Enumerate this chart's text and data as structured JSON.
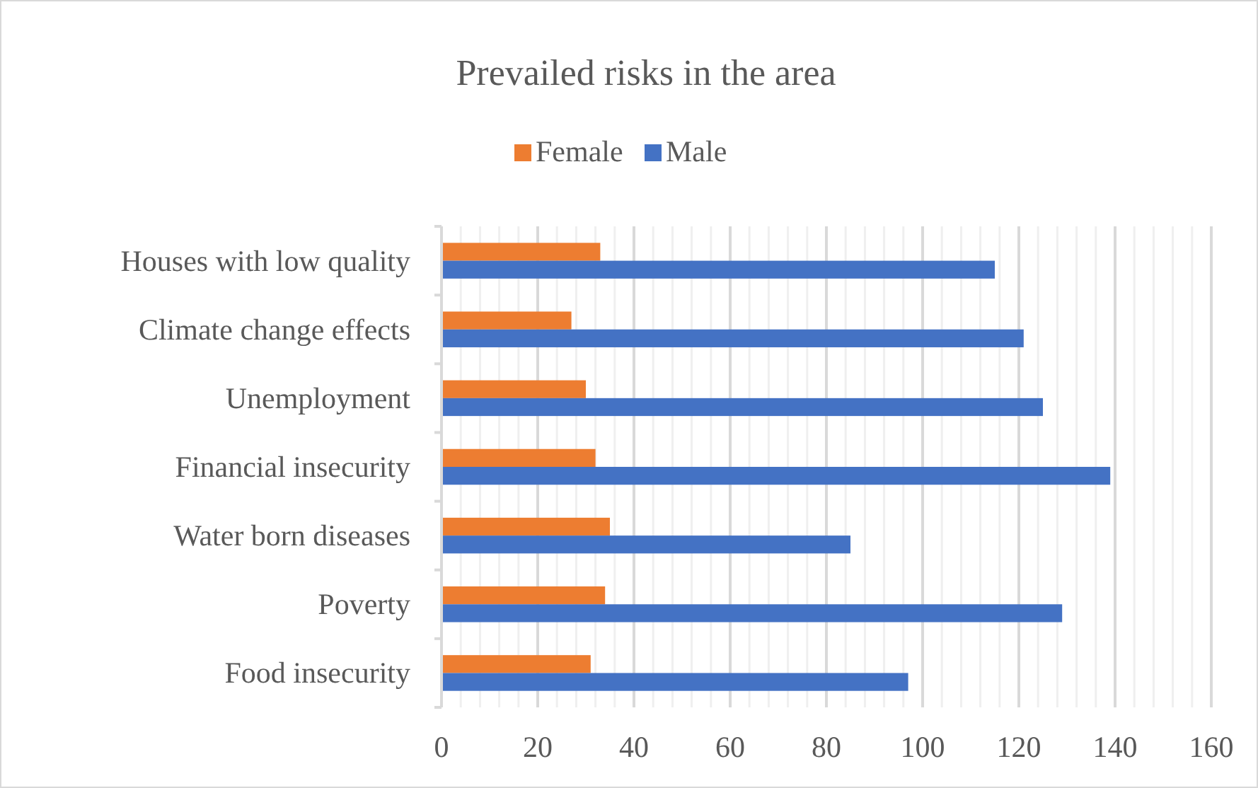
{
  "chart_data": {
    "type": "bar",
    "orientation": "horizontal",
    "title": "Prevailed risks in the area",
    "categories": [
      "Houses with low quality",
      "Climate change effects",
      "Unemployment",
      "Financial insecurity",
      "Water born diseases",
      "Poverty",
      "Food insecurity"
    ],
    "series": [
      {
        "name": "Female",
        "color": "#ed7d31",
        "values": [
          33,
          27,
          30,
          32,
          35,
          34,
          31
        ]
      },
      {
        "name": "Male",
        "color": "#4472c4",
        "values": [
          115,
          121,
          125,
          139,
          85,
          129,
          97
        ]
      }
    ],
    "xlim": [
      0,
      160
    ],
    "xticks": [
      0,
      {
        "value": 4,
        "label": null
      },
      {
        "value": 8,
        "label": null
      },
      {
        "value": 12,
        "label": null
      },
      {
        "value": 16,
        "label": null
      },
      20,
      {
        "value": 24,
        "label": null
      },
      {
        "value": 28,
        "label": null
      },
      {
        "value": 32,
        "label": null
      },
      {
        "value": 36,
        "label": null
      },
      40,
      {
        "value": 44,
        "label": null
      },
      {
        "value": 48,
        "label": null
      },
      {
        "value": 52,
        "label": null
      },
      {
        "value": 56,
        "label": null
      },
      60,
      {
        "value": 64,
        "label": null
      },
      {
        "value": 68,
        "label": null
      },
      {
        "value": 72,
        "label": null
      },
      {
        "value": 76,
        "label": null
      },
      80,
      {
        "value": 84,
        "label": null
      },
      {
        "value": 88,
        "label": null
      },
      {
        "value": 92,
        "label": null
      },
      {
        "value": 96,
        "label": null
      },
      100,
      {
        "value": 104,
        "label": null
      },
      {
        "value": 108,
        "label": null
      },
      {
        "value": 112,
        "label": null
      },
      {
        "value": 116,
        "label": null
      },
      120,
      {
        "value": 124,
        "label": null
      },
      {
        "value": 128,
        "label": null
      },
      {
        "value": 132,
        "label": null
      },
      {
        "value": 136,
        "label": null
      },
      140,
      {
        "value": 144,
        "label": null
      },
      {
        "value": 148,
        "label": null
      },
      {
        "value": 152,
        "label": null
      },
      {
        "value": 156,
        "label": null
      },
      160
    ],
    "grid": true,
    "legend": "top"
  }
}
